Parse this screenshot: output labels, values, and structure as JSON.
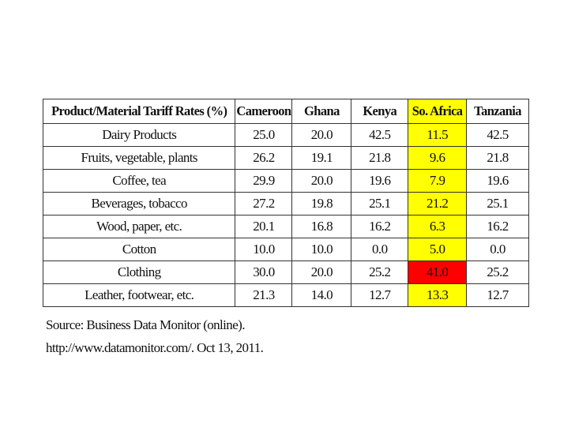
{
  "table": {
    "headers": [
      "Product/Material Tariff Rates (%)",
      "Cameroon",
      "Ghana",
      "Kenya",
      "So. Africa",
      "Tanzania"
    ],
    "rows": [
      [
        "Dairy Products",
        "25.0",
        "20.0",
        "42.5",
        "11.5",
        "42.5"
      ],
      [
        "Fruits, vegetable, plants",
        "26.2",
        "19.1",
        "21.8",
        "9.6",
        "21.8"
      ],
      [
        "Coffee, tea",
        "29.9",
        "20.0",
        "19.6",
        "7.9",
        "19.6"
      ],
      [
        "Beverages, tobacco",
        "27.2",
        "19.8",
        "25.1",
        "21.2",
        "25.1"
      ],
      [
        "Wood, paper, etc.",
        "20.1",
        "16.8",
        "16.2",
        "6.3",
        "16.2"
      ],
      [
        "Cotton",
        "10.0",
        "10.0",
        "0.0",
        "5.0",
        "0.0"
      ],
      [
        "Clothing",
        "30.0",
        "20.0",
        "25.2",
        "41.0",
        "25.2"
      ],
      [
        "Leather, footwear, etc.",
        "21.3",
        "14.0",
        "12.7",
        "13.3",
        "12.7"
      ]
    ],
    "highlight_color": "#ffff00",
    "alert_color": "#ff0000",
    "highlight_column": 4,
    "alert_row": 6
  },
  "source": "Source:  Business Data Monitor (online). http://www.datamonitor.com/. Oct 13, 2011."
}
